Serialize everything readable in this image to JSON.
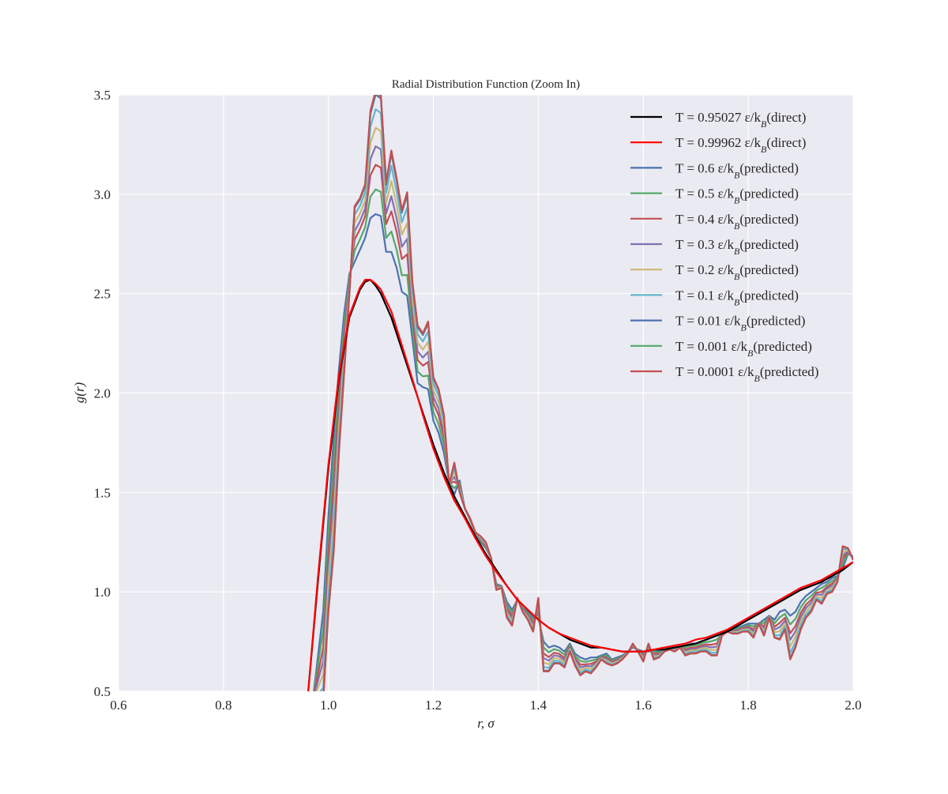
{
  "chart_data": {
    "type": "line",
    "title": "Radial Distribution Function (Zoom In)",
    "xlabel": "r, σ",
    "ylabel": "g(r)",
    "xlim": [
      0.6,
      2.0
    ],
    "ylim": [
      0.5,
      3.5
    ],
    "xticks": [
      "0.6",
      "0.8",
      "1.0",
      "1.2",
      "1.4",
      "1.6",
      "1.8",
      "2.0"
    ],
    "yticks": [
      "0.5",
      "1.0",
      "1.5",
      "2.0",
      "2.5",
      "3.0",
      "3.5"
    ],
    "grid": true,
    "legend_position": "top-right",
    "series": [
      {
        "name": "T = 0.95027 ε/k_B(direct)",
        "legend_main": "T = 0.95027 ε/k",
        "legend_suffix": "(direct)",
        "color": "#000000",
        "kind": "direct",
        "scale": 1.0,
        "x": [
          0.96,
          0.98,
          1.0,
          1.02,
          1.04,
          1.06,
          1.07,
          1.08,
          1.09,
          1.1,
          1.12,
          1.14,
          1.16,
          1.18,
          1.2,
          1.22,
          1.24,
          1.26,
          1.28,
          1.3,
          1.32,
          1.34,
          1.36,
          1.38,
          1.4,
          1.42,
          1.44,
          1.46,
          1.48,
          1.5,
          1.52,
          1.54,
          1.56,
          1.58,
          1.6,
          1.62,
          1.64,
          1.66,
          1.68,
          1.7,
          1.72,
          1.74,
          1.76,
          1.78,
          1.8,
          1.82,
          1.84,
          1.86,
          1.88,
          1.9,
          1.92,
          1.94,
          1.96,
          1.98,
          2.0
        ],
        "y": [
          0.45,
          1.05,
          1.62,
          2.07,
          2.38,
          2.52,
          2.56,
          2.57,
          2.54,
          2.5,
          2.38,
          2.22,
          2.06,
          1.9,
          1.74,
          1.6,
          1.48,
          1.38,
          1.28,
          1.19,
          1.11,
          1.03,
          0.96,
          0.91,
          0.86,
          0.82,
          0.79,
          0.76,
          0.74,
          0.72,
          0.72,
          0.71,
          0.7,
          0.7,
          0.7,
          0.71,
          0.71,
          0.72,
          0.73,
          0.74,
          0.76,
          0.78,
          0.8,
          0.83,
          0.86,
          0.89,
          0.92,
          0.95,
          0.98,
          1.01,
          1.03,
          1.05,
          1.08,
          1.11,
          1.15
        ]
      },
      {
        "name": "T = 0.99962 ε/k_B(direct)",
        "legend_main": "T = 0.99962 ε/k",
        "legend_suffix": "(direct)",
        "color": "#ff0000",
        "kind": "direct",
        "scale": 1.0,
        "x": [
          0.96,
          0.98,
          1.0,
          1.02,
          1.04,
          1.06,
          1.07,
          1.08,
          1.09,
          1.1,
          1.12,
          1.14,
          1.16,
          1.18,
          1.2,
          1.22,
          1.24,
          1.26,
          1.28,
          1.3,
          1.32,
          1.34,
          1.36,
          1.38,
          1.4,
          1.42,
          1.44,
          1.46,
          1.48,
          1.5,
          1.52,
          1.54,
          1.56,
          1.58,
          1.6,
          1.62,
          1.64,
          1.66,
          1.68,
          1.7,
          1.72,
          1.74,
          1.76,
          1.78,
          1.8,
          1.82,
          1.84,
          1.86,
          1.88,
          1.9,
          1.92,
          1.94,
          1.96,
          1.98,
          2.0
        ],
        "y": [
          0.45,
          1.07,
          1.64,
          2.09,
          2.39,
          2.53,
          2.57,
          2.57,
          2.55,
          2.52,
          2.41,
          2.24,
          2.07,
          1.89,
          1.72,
          1.58,
          1.46,
          1.37,
          1.27,
          1.18,
          1.1,
          1.03,
          0.96,
          0.91,
          0.86,
          0.82,
          0.79,
          0.77,
          0.75,
          0.73,
          0.72,
          0.71,
          0.7,
          0.7,
          0.7,
          0.71,
          0.72,
          0.73,
          0.74,
          0.76,
          0.77,
          0.79,
          0.81,
          0.84,
          0.87,
          0.9,
          0.93,
          0.96,
          0.99,
          1.02,
          1.04,
          1.06,
          1.09,
          1.12,
          1.15
        ]
      },
      {
        "name": "T = 0.6 ε/k_B(predicted)",
        "legend_main": "T = 0.6 ε/k",
        "legend_suffix": "(predicted)",
        "color": "#4c72b0",
        "kind": "pred",
        "scale": 0.0
      },
      {
        "name": "T = 0.5 ε/k_B(predicted)",
        "legend_main": "T = 0.5 ε/k",
        "legend_suffix": "(predicted)",
        "color": "#55a868",
        "kind": "pred",
        "scale": 0.2
      },
      {
        "name": "T = 0.4 ε/k_B(predicted)",
        "legend_main": "T = 0.4 ε/k",
        "legend_suffix": "(predicted)",
        "color": "#c44e52",
        "kind": "pred",
        "scale": 0.4
      },
      {
        "name": "T = 0.3 ε/k_B(predicted)",
        "legend_main": "T = 0.3 ε/k",
        "legend_suffix": "(predicted)",
        "color": "#8172b2",
        "kind": "pred",
        "scale": 0.55
      },
      {
        "name": "T = 0.2 ε/k_B(predicted)",
        "legend_main": "T = 0.2 ε/k",
        "legend_suffix": "(predicted)",
        "color": "#ccb974",
        "kind": "pred",
        "scale": 0.7
      },
      {
        "name": "T = 0.1 ε/k_B(predicted)",
        "legend_main": "T = 0.1 ε/k",
        "legend_suffix": "(predicted)",
        "color": "#64b5cd",
        "kind": "pred",
        "scale": 0.85
      },
      {
        "name": "T = 0.01 ε/k_B(predicted)",
        "legend_main": "T = 0.01 ε/k",
        "legend_suffix": "(predicted)",
        "color": "#4c72b0",
        "kind": "pred",
        "scale": 0.97
      },
      {
        "name": "T = 0.001 ε/k_B(predicted)",
        "legend_main": "T = 0.001 ε/k",
        "legend_suffix": "(predicted)",
        "color": "#55a868",
        "kind": "pred",
        "scale": 0.99
      },
      {
        "name": "T = 0.0001 ε/k_B(predicted)",
        "legend_main": "T = 0.0001 ε/k",
        "legend_suffix": "(predicted)",
        "color": "#c44e52",
        "kind": "pred",
        "scale": 1.0
      }
    ],
    "predicted_x": [
      0.97,
      0.99,
      1.0,
      1.01,
      1.02,
      1.03,
      1.04,
      1.05,
      1.06,
      1.07,
      1.08,
      1.09,
      1.1,
      1.11,
      1.12,
      1.13,
      1.14,
      1.15,
      1.16,
      1.17,
      1.18,
      1.19,
      1.2,
      1.21,
      1.22,
      1.23,
      1.24,
      1.25,
      1.26,
      1.27,
      1.28,
      1.29,
      1.3,
      1.31,
      1.32,
      1.33,
      1.34,
      1.35,
      1.36,
      1.37,
      1.38,
      1.39,
      1.4,
      1.41,
      1.42,
      1.43,
      1.44,
      1.45,
      1.46,
      1.47,
      1.48,
      1.49,
      1.5,
      1.51,
      1.52,
      1.53,
      1.54,
      1.55,
      1.56,
      1.57,
      1.58,
      1.59,
      1.6,
      1.61,
      1.62,
      1.63,
      1.64,
      1.65,
      1.66,
      1.67,
      1.68,
      1.69,
      1.7,
      1.71,
      1.72,
      1.73,
      1.74,
      1.75,
      1.76,
      1.77,
      1.78,
      1.79,
      1.8,
      1.81,
      1.82,
      1.83,
      1.84,
      1.85,
      1.86,
      1.87,
      1.88,
      1.89,
      1.9,
      1.91,
      1.92,
      1.93,
      1.94,
      1.95,
      1.96,
      1.97,
      1.98,
      1.99,
      2.0
    ],
    "predicted_warm_y": [
      0.45,
      0.9,
      1.38,
      1.78,
      2.12,
      2.4,
      2.6,
      2.66,
      2.72,
      2.78,
      2.88,
      2.9,
      2.89,
      2.71,
      2.71,
      2.63,
      2.51,
      2.49,
      2.27,
      2.05,
      2.03,
      2.02,
      1.86,
      1.8,
      1.7,
      1.55,
      1.49,
      1.56,
      1.42,
      1.36,
      1.3,
      1.25,
      1.22,
      1.17,
      1.04,
      1.03,
      0.95,
      0.91,
      0.96,
      0.92,
      0.9,
      0.87,
      0.87,
      0.75,
      0.72,
      0.73,
      0.72,
      0.7,
      0.74,
      0.69,
      0.67,
      0.66,
      0.67,
      0.67,
      0.68,
      0.69,
      0.66,
      0.67,
      0.68,
      0.7,
      0.72,
      0.71,
      0.7,
      0.7,
      0.71,
      0.7,
      0.71,
      0.72,
      0.72,
      0.72,
      0.73,
      0.74,
      0.74,
      0.75,
      0.76,
      0.77,
      0.78,
      0.79,
      0.81,
      0.81,
      0.82,
      0.83,
      0.84,
      0.84,
      0.84,
      0.86,
      0.88,
      0.86,
      0.9,
      0.91,
      0.88,
      0.9,
      0.95,
      0.98,
      1.0,
      1.02,
      1.04,
      1.05,
      1.07,
      1.08,
      1.12,
      1.19,
      1.18
    ],
    "predicted_cold_y": [
      0.45,
      0.45,
      0.9,
      1.2,
      1.7,
      2.1,
      2.5,
      2.94,
      2.98,
      3.05,
      3.42,
      3.52,
      3.5,
      3.06,
      3.22,
      3.08,
      2.92,
      3.01,
      2.56,
      2.34,
      2.3,
      2.36,
      2.08,
      2.02,
      1.89,
      1.54,
      1.65,
      1.5,
      1.42,
      1.37,
      1.3,
      1.28,
      1.25,
      1.17,
      1.01,
      1.02,
      0.87,
      0.83,
      0.97,
      0.9,
      0.86,
      0.8,
      0.97,
      0.6,
      0.6,
      0.64,
      0.64,
      0.62,
      0.7,
      0.63,
      0.58,
      0.6,
      0.59,
      0.62,
      0.66,
      0.64,
      0.63,
      0.64,
      0.66,
      0.69,
      0.74,
      0.7,
      0.65,
      0.74,
      0.66,
      0.67,
      0.7,
      0.71,
      0.7,
      0.72,
      0.68,
      0.69,
      0.69,
      0.7,
      0.7,
      0.68,
      0.68,
      0.78,
      0.8,
      0.79,
      0.79,
      0.8,
      0.8,
      0.77,
      0.84,
      0.78,
      0.87,
      0.77,
      0.76,
      0.81,
      0.66,
      0.72,
      0.81,
      0.87,
      0.9,
      0.96,
      0.94,
      0.99,
      1.0,
      1.05,
      1.23,
      1.22,
      1.16
    ]
  }
}
